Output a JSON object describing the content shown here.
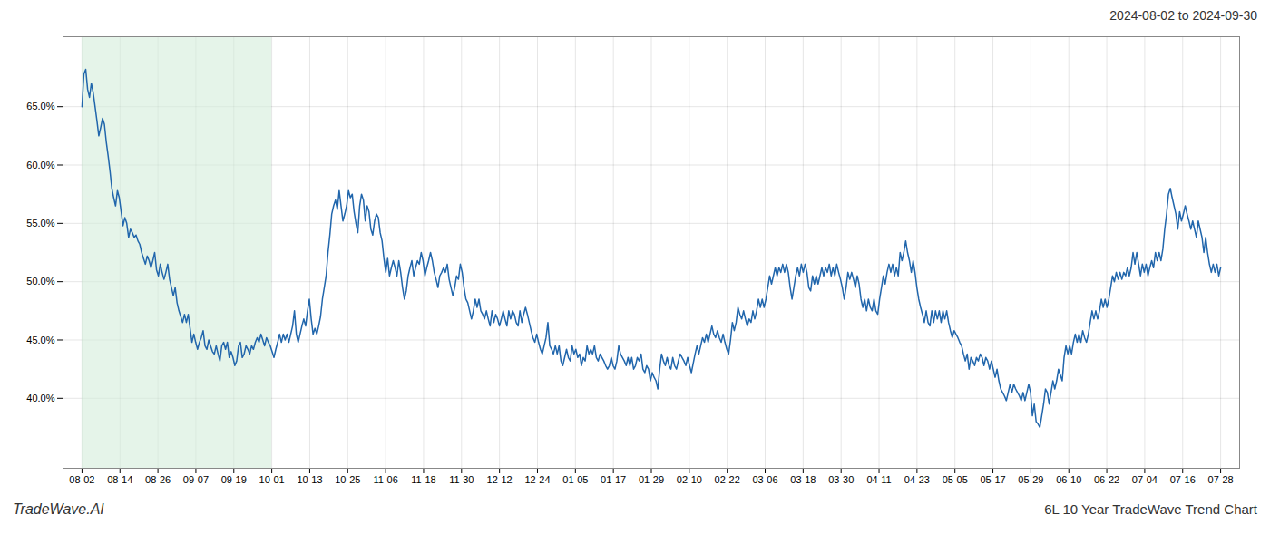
{
  "chart_data": {
    "type": "line",
    "title": "6L 10 Year TradeWave Trend Chart",
    "subtitle": "2024-08-02 to 2024-09-30",
    "annotations": [
      "TradeWave.AI"
    ],
    "color": "#2166ac",
    "grid": true,
    "xlim": [
      -0.5,
      30.5
    ],
    "xticks": [
      {
        "value": 0,
        "label": "08-02"
      },
      {
        "value": 1,
        "label": "08-14"
      },
      {
        "value": 2,
        "label": "08-26"
      },
      {
        "value": 3,
        "label": "09-07"
      },
      {
        "value": 4,
        "label": "09-19"
      },
      {
        "value": 5,
        "label": "10-01"
      },
      {
        "value": 6,
        "label": "10-13"
      },
      {
        "value": 7,
        "label": "10-25"
      },
      {
        "value": 8,
        "label": "11-06"
      },
      {
        "value": 9,
        "label": "11-18"
      },
      {
        "value": 10,
        "label": "11-30"
      },
      {
        "value": 11,
        "label": "12-12"
      },
      {
        "value": 12,
        "label": "12-24"
      },
      {
        "value": 13,
        "label": "01-05"
      },
      {
        "value": 14,
        "label": "01-17"
      },
      {
        "value": 15,
        "label": "01-29"
      },
      {
        "value": 16,
        "label": "02-10"
      },
      {
        "value": 17,
        "label": "02-22"
      },
      {
        "value": 18,
        "label": "03-06"
      },
      {
        "value": 19,
        "label": "03-18"
      },
      {
        "value": 20,
        "label": "03-30"
      },
      {
        "value": 21,
        "label": "04-11"
      },
      {
        "value": 22,
        "label": "04-23"
      },
      {
        "value": 23,
        "label": "05-05"
      },
      {
        "value": 24,
        "label": "05-17"
      },
      {
        "value": 25,
        "label": "05-29"
      },
      {
        "value": 26,
        "label": "06-10"
      },
      {
        "value": 27,
        "label": "06-22"
      },
      {
        "value": 28,
        "label": "07-04"
      },
      {
        "value": 29,
        "label": "07-16"
      },
      {
        "value": 30,
        "label": "07-28"
      }
    ],
    "ylim": [
      34,
      71
    ],
    "yticks": [
      {
        "value": 40.0,
        "label": "40.0%"
      },
      {
        "value": 45.0,
        "label": "45.0%"
      },
      {
        "value": 50.0,
        "label": "50.0%"
      },
      {
        "value": 55.0,
        "label": "55.0%"
      },
      {
        "value": 60.0,
        "label": "60.0%"
      },
      {
        "value": 65.0,
        "label": "65.0%"
      }
    ],
    "shade": {
      "start": 0,
      "end": 5,
      "color": "#d4edda"
    },
    "values": [
      65.0,
      67.8,
      68.2,
      66.5,
      65.8,
      67.0,
      66.2,
      65.0,
      63.8,
      62.5,
      63.2,
      64.0,
      63.5,
      62.0,
      60.8,
      59.5,
      58.0,
      57.2,
      56.5,
      57.8,
      57.2,
      56.0,
      54.8,
      55.5,
      55.0,
      53.8,
      54.5,
      54.2,
      53.8,
      54.0,
      53.5,
      53.2,
      52.5,
      52.0,
      51.5,
      52.2,
      51.8,
      51.2,
      51.8,
      52.5,
      51.0,
      50.5,
      51.5,
      50.8,
      50.2,
      50.8,
      51.5,
      50.2,
      49.5,
      48.8,
      49.5,
      48.2,
      47.5,
      47.0,
      46.5,
      47.2,
      46.5,
      47.2,
      46.0,
      44.8,
      45.5,
      44.8,
      44.2,
      44.8,
      45.2,
      45.8,
      44.5,
      44.2,
      45.0,
      44.5,
      44.0,
      43.8,
      44.5,
      43.8,
      43.2,
      44.5,
      44.8,
      44.2,
      44.8,
      43.5,
      44.0,
      43.5,
      42.8,
      43.2,
      44.5,
      44.8,
      43.5,
      43.8,
      44.5,
      44.2,
      43.8,
      44.5,
      44.2,
      44.8,
      45.2,
      44.8,
      45.5,
      45.0,
      44.5,
      45.2,
      44.8,
      44.5,
      44.0,
      43.5,
      44.2,
      44.8,
      45.5,
      44.8,
      45.5,
      45.0,
      45.5,
      44.8,
      45.5,
      46.2,
      47.5,
      45.5,
      44.8,
      45.5,
      46.2,
      46.8,
      46.2,
      47.5,
      48.5,
      46.8,
      45.5,
      46.0,
      45.5,
      46.2,
      47.0,
      48.5,
      49.5,
      50.5,
      52.5,
      54.0,
      55.8,
      56.5,
      57.0,
      56.2,
      57.8,
      56.5,
      55.2,
      55.8,
      56.5,
      57.8,
      57.2,
      57.5,
      56.0,
      55.0,
      54.2,
      56.5,
      57.5,
      57.0,
      55.2,
      56.5,
      56.0,
      54.5,
      54.0,
      55.2,
      55.8,
      55.5,
      54.2,
      53.5,
      52.0,
      50.8,
      52.0,
      50.5,
      51.2,
      51.8,
      51.2,
      50.5,
      51.8,
      50.8,
      49.5,
      48.5,
      49.2,
      50.5,
      51.2,
      51.8,
      50.5,
      51.2,
      51.8,
      51.5,
      52.5,
      51.8,
      50.5,
      51.2,
      51.8,
      52.5,
      51.8,
      50.8,
      50.2,
      49.5,
      50.5,
      50.8,
      51.2,
      50.8,
      51.5,
      50.2,
      49.5,
      48.8,
      49.5,
      50.5,
      50.2,
      51.5,
      50.8,
      49.5,
      48.5,
      48.2,
      47.5,
      46.8,
      47.5,
      48.5,
      47.8,
      48.5,
      47.5,
      47.2,
      46.8,
      47.5,
      46.8,
      46.2,
      47.5,
      46.5,
      47.2,
      46.8,
      46.2,
      46.8,
      47.5,
      46.8,
      46.2,
      47.5,
      46.8,
      47.5,
      47.2,
      46.5,
      46.2,
      47.5,
      46.5,
      47.2,
      47.8,
      47.2,
      46.5,
      45.8,
      45.2,
      44.8,
      45.5,
      44.8,
      44.2,
      43.8,
      44.5,
      45.2,
      46.5,
      44.5,
      44.2,
      43.8,
      44.5,
      43.8,
      44.5,
      43.2,
      42.8,
      43.5,
      44.2,
      43.5,
      43.2,
      44.5,
      43.8,
      44.2,
      43.5,
      43.8,
      42.8,
      43.5,
      43.2,
      44.5,
      43.8,
      44.2,
      43.8,
      44.5,
      43.5,
      43.2,
      43.8,
      43.5,
      43.2,
      42.8,
      42.5,
      42.8,
      43.5,
      42.8,
      42.5,
      43.2,
      44.5,
      43.8,
      43.5,
      43.2,
      42.8,
      43.5,
      42.8,
      43.5,
      42.5,
      42.8,
      43.5,
      43.2,
      43.8,
      42.5,
      42.2,
      42.8,
      42.5,
      41.5,
      42.2,
      41.8,
      41.5,
      40.8,
      42.5,
      43.8,
      43.2,
      42.8,
      43.5,
      42.8,
      42.5,
      43.5,
      42.8,
      42.5,
      43.2,
      43.8,
      43.5,
      43.2,
      42.8,
      43.5,
      42.8,
      42.2,
      43.0,
      43.8,
      44.5,
      43.8,
      44.5,
      45.2,
      44.8,
      45.5,
      44.8,
      45.5,
      46.2,
      45.5,
      45.2,
      45.8,
      45.2,
      44.8,
      45.5,
      44.8,
      44.2,
      43.8,
      45.0,
      46.5,
      45.8,
      46.5,
      47.8,
      47.2,
      46.8,
      47.5,
      46.8,
      46.2,
      46.8,
      46.5,
      47.5,
      46.8,
      47.5,
      48.5,
      47.8,
      48.5,
      47.8,
      48.5,
      49.5,
      50.5,
      49.8,
      50.5,
      51.2,
      50.5,
      51.2,
      50.8,
      51.5,
      50.8,
      51.5,
      50.8,
      49.5,
      48.5,
      49.5,
      50.5,
      51.2,
      50.5,
      51.5,
      50.8,
      51.5,
      50.8,
      49.5,
      49.2,
      50.5,
      49.8,
      50.5,
      49.8,
      50.5,
      51.2,
      50.5,
      51.2,
      50.8,
      51.5,
      50.5,
      51.2,
      50.5,
      51.5,
      50.8,
      50.2,
      49.5,
      48.5,
      49.5,
      50.8,
      50.2,
      50.8,
      50.2,
      49.5,
      50.5,
      49.8,
      48.5,
      47.8,
      48.5,
      47.5,
      48.5,
      47.8,
      47.5,
      48.5,
      47.5,
      47.2,
      48.5,
      49.5,
      50.5,
      49.8,
      50.8,
      51.5,
      50.8,
      51.5,
      50.5,
      51.2,
      50.5,
      52.5,
      51.8,
      52.5,
      53.5,
      52.5,
      51.8,
      50.8,
      51.8,
      50.8,
      49.5,
      48.5,
      47.8,
      47.2,
      46.5,
      47.5,
      46.5,
      46.2,
      47.5,
      46.5,
      47.5,
      46.8,
      47.5,
      46.5,
      47.5,
      46.8,
      47.5,
      46.5,
      45.8,
      45.2,
      45.8,
      45.5,
      45.2,
      44.8,
      44.5,
      43.8,
      43.2,
      43.8,
      42.5,
      43.5,
      43.2,
      42.8,
      43.5,
      43.2,
      43.8,
      43.5,
      42.8,
      43.5,
      43.2,
      42.5,
      43.2,
      42.5,
      41.8,
      42.5,
      41.5,
      40.8,
      40.5,
      40.2,
      39.8,
      40.5,
      41.2,
      40.5,
      41.2,
      40.8,
      40.5,
      40.2,
      39.8,
      40.5,
      39.8,
      40.5,
      41.2,
      40.5,
      38.5,
      39.5,
      38.0,
      37.8,
      37.5,
      38.5,
      39.5,
      40.8,
      40.5,
      39.5,
      40.5,
      41.5,
      40.8,
      41.5,
      42.5,
      42.0,
      41.5,
      43.5,
      44.5,
      43.8,
      44.5,
      43.8,
      44.8,
      45.5,
      44.8,
      45.5,
      44.8,
      45.8,
      45.2,
      44.8,
      45.5,
      46.5,
      47.5,
      46.8,
      47.5,
      46.8,
      47.5,
      48.5,
      47.8,
      48.5,
      47.8,
      48.5,
      49.5,
      50.5,
      50.0,
      50.8,
      50.2,
      50.8,
      50.2,
      50.8,
      50.5,
      51.2,
      50.5,
      51.2,
      52.5,
      51.5,
      52.5,
      51.5,
      50.5,
      51.5,
      50.8,
      51.5,
      50.5,
      51.2,
      51.8,
      51.2,
      52.5,
      51.8,
      52.5,
      51.8,
      52.8,
      54.5,
      55.8,
      57.5,
      58.0,
      57.2,
      56.5,
      55.8,
      54.5,
      56.0,
      55.2,
      55.8,
      56.5,
      55.8,
      55.2,
      54.5,
      55.2,
      54.5,
      53.8,
      55.2,
      54.5,
      53.8,
      52.5,
      53.8,
      52.5,
      51.5,
      50.8,
      51.5,
      50.8,
      51.5,
      50.5,
      51.2
    ]
  }
}
